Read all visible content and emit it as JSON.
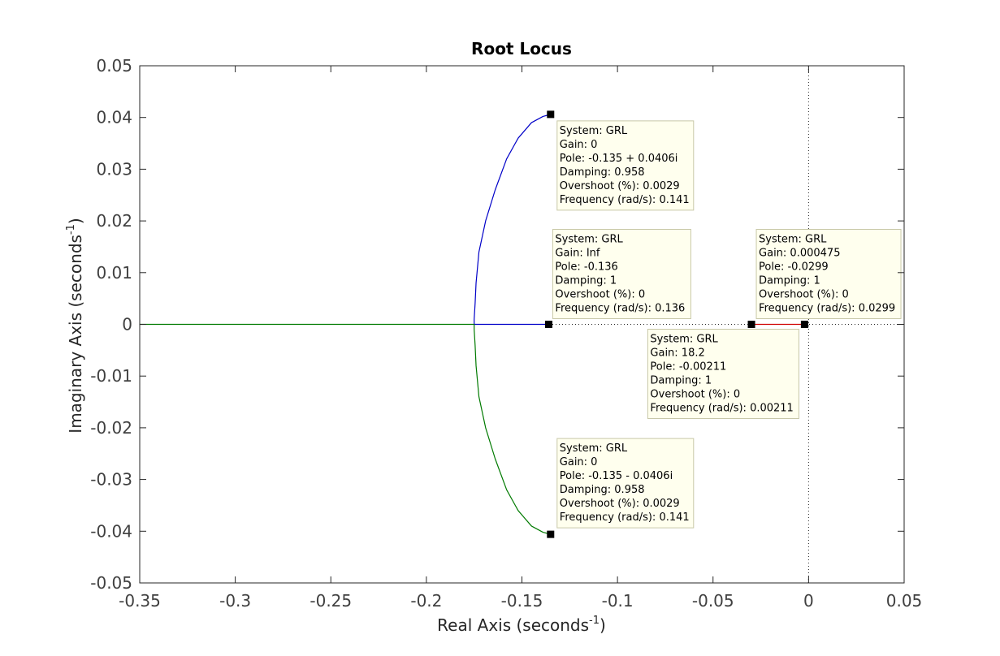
{
  "chart_data": {
    "type": "line",
    "title": "Root Locus",
    "xlabel": {
      "text": "Real Axis (seconds",
      "sup": "-1",
      "close": ")"
    },
    "ylabel": {
      "text": "Imaginary Axis (seconds",
      "sup": "-1",
      "close": ")"
    },
    "xlim": [
      -0.35,
      0.05
    ],
    "ylim": [
      -0.05,
      0.05
    ],
    "xticks": [
      -0.35,
      -0.3,
      -0.25,
      -0.2,
      -0.15,
      -0.1,
      -0.05,
      0,
      0.05
    ],
    "xtick_labels": [
      "-0.35",
      "-0.3",
      "-0.25",
      "-0.2",
      "-0.15",
      "-0.1",
      "-0.05",
      "0",
      "0.05"
    ],
    "yticks": [
      0.05,
      0.04,
      0.03,
      0.02,
      0.01,
      0,
      -0.01,
      -0.02,
      -0.03,
      -0.04,
      -0.05
    ],
    "ytick_labels": [
      "0.05",
      "0.04",
      "0.03",
      "0.02",
      "0.01",
      "0",
      "-0.01",
      "-0.02",
      "-0.03",
      "-0.04",
      "-0.05"
    ],
    "grid": false,
    "colors": {
      "blue": "#0000c8",
      "green": "#007a00",
      "red": "#d00000",
      "axis": "#262626"
    },
    "series": [
      {
        "color": "#0000c8",
        "x": [
          -0.135,
          -0.139,
          -0.145,
          -0.152,
          -0.158,
          -0.164,
          -0.169,
          -0.1725,
          -0.174,
          -0.1745,
          -0.175,
          -0.175,
          -0.136
        ],
        "y": [
          0.0406,
          0.0402,
          0.039,
          0.036,
          0.032,
          0.026,
          0.02,
          0.014,
          0.008,
          0.004,
          0.001,
          0,
          0
        ]
      },
      {
        "color": "#007a00",
        "x": [
          -0.135,
          -0.139,
          -0.145,
          -0.152,
          -0.158,
          -0.164,
          -0.169,
          -0.1725,
          -0.174,
          -0.1745,
          -0.175,
          -0.175
        ],
        "y": [
          -0.0406,
          -0.0402,
          -0.039,
          -0.036,
          -0.032,
          -0.026,
          -0.02,
          -0.014,
          -0.008,
          -0.004,
          -0.001,
          0
        ]
      },
      {
        "color": "#007a00",
        "x": [
          -0.175,
          -0.35
        ],
        "y": [
          0,
          0
        ]
      },
      {
        "color": "#d00000",
        "x": [
          -0.0299,
          -0.00211
        ],
        "y": [
          0,
          0
        ]
      }
    ],
    "markers": [
      {
        "x": -0.135,
        "y": 0.0406
      },
      {
        "x": -0.135,
        "y": -0.0406
      },
      {
        "x": -0.136,
        "y": 0
      },
      {
        "x": -0.0299,
        "y": 0
      },
      {
        "x": -0.00211,
        "y": 0
      }
    ],
    "datatips": [
      {
        "anchor": "pole-top",
        "lines": [
          "System: GRL",
          "Gain: 0",
          "Pole: -0.135 + 0.0406i",
          "Damping: 0.958",
          "Overshoot (%): 0.0029",
          "Frequency (rad/s): 0.141"
        ]
      },
      {
        "anchor": "zero-left",
        "lines": [
          "System: GRL",
          "Gain: Inf",
          "Pole: -0.136",
          "Damping: 1",
          "Overshoot (%): 0",
          "Frequency (rad/s): 0.136"
        ]
      },
      {
        "anchor": "pole-right-a",
        "lines": [
          "System: GRL",
          "Gain: 0.000475",
          "Pole: -0.0299",
          "Damping: 1",
          "Overshoot (%): 0",
          "Frequency (rad/s): 0.0299"
        ]
      },
      {
        "anchor": "breakaway",
        "lines": [
          "System: GRL",
          "Gain: 18.2",
          "Pole: -0.00211",
          "Damping: 1",
          "Overshoot (%): 0",
          "Frequency (rad/s): 0.00211"
        ]
      },
      {
        "anchor": "pole-bottom",
        "lines": [
          "System: GRL",
          "Gain: 0",
          "Pole: -0.135 - 0.0406i",
          "Damping: 0.958",
          "Overshoot (%): 0.0029",
          "Frequency (rad/s): 0.141"
        ]
      }
    ]
  }
}
